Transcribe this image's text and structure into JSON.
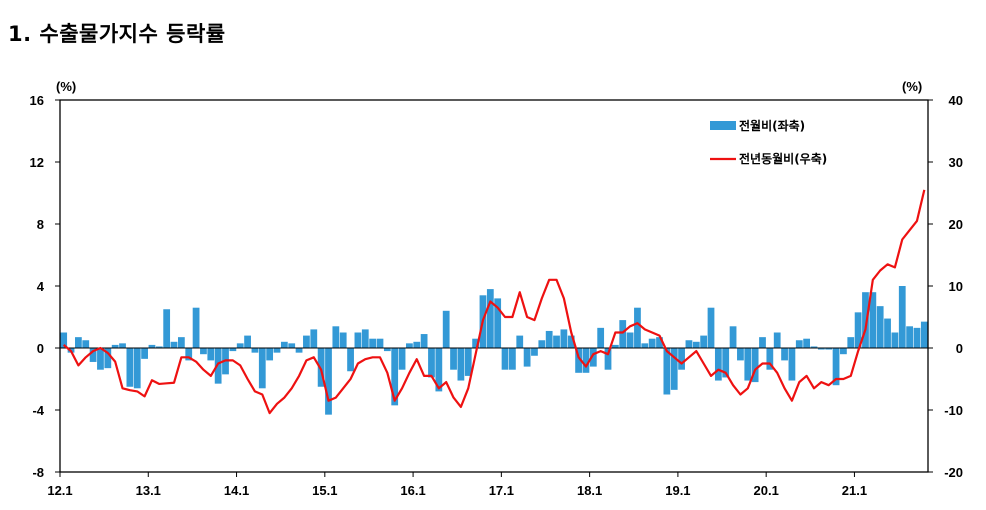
{
  "page": {
    "title": "1. 수출물가지수 등락률"
  },
  "chart_data": {
    "type": "bar+line",
    "title": "1. 수출물가지수 등락률",
    "left_axis": {
      "unit_label": "(%)",
      "ylim": [
        -8,
        16
      ],
      "ticks": [
        16,
        12,
        8,
        4,
        0,
        -4,
        -8
      ]
    },
    "right_axis": {
      "unit_label": "(%)",
      "ylim": [
        -20,
        40
      ],
      "ticks": [
        40,
        30,
        20,
        10,
        0,
        -10,
        -20
      ]
    },
    "x_tick_labels": [
      "12.1",
      "13.1",
      "14.1",
      "15.1",
      "16.1",
      "17.1",
      "18.1",
      "19.1",
      "20.1",
      "21.1"
    ],
    "x_tick_index": [
      0,
      12,
      24,
      36,
      48,
      60,
      72,
      84,
      96,
      108
    ],
    "grid": false,
    "legend_position": "top-right",
    "series": [
      {
        "name": "전월비(좌축)",
        "type": "bar",
        "axis": "left",
        "color": "#3399d6",
        "values": [
          1.0,
          -0.3,
          0.7,
          0.5,
          -0.9,
          -1.4,
          -1.3,
          0.2,
          0.3,
          -2.5,
          -2.6,
          -0.7,
          0.2,
          0.1,
          2.5,
          0.4,
          0.7,
          -0.8,
          2.6,
          -0.4,
          -0.8,
          -2.3,
          -1.7,
          -0.2,
          0.3,
          0.8,
          -0.3,
          -2.6,
          -0.8,
          -0.3,
          0.4,
          0.3,
          -0.3,
          0.8,
          1.2,
          -2.5,
          -4.3,
          1.4,
          1.0,
          -1.5,
          1.0,
          1.2,
          0.6,
          0.6,
          -0.2,
          -3.7,
          -1.4,
          0.3,
          0.4,
          0.9,
          -1.9,
          -2.8,
          2.4,
          -1.4,
          -2.1,
          -1.8,
          0.6,
          3.4,
          3.8,
          3.2,
          -1.4,
          -1.4,
          0.8,
          -1.2,
          -0.5,
          0.5,
          1.1,
          0.8,
          1.2,
          0.8,
          -1.6,
          -1.6,
          -1.2,
          1.3,
          -1.4,
          0.2,
          1.8,
          1.0,
          2.6,
          0.3,
          0.6,
          0.7,
          -3.0,
          -2.7,
          -1.4,
          0.5,
          0.4,
          0.8,
          2.6,
          -2.1,
          -1.9,
          1.4,
          -0.8,
          -2.1,
          -2.2,
          0.7,
          -1.4,
          1.0,
          -0.8,
          -2.1,
          0.5,
          0.6,
          0.1,
          -0.1,
          -0.1,
          -2.4,
          -0.4,
          0.7,
          2.3,
          3.6,
          3.6,
          2.7,
          1.9,
          1.0,
          4.0,
          1.4,
          1.3,
          1.7
        ]
      },
      {
        "name": "전년동월비(우축)",
        "type": "line",
        "axis": "right",
        "color": "#ee1111",
        "values": [
          0.5,
          -0.5,
          -2.8,
          -1.5,
          -0.5,
          0.0,
          -0.8,
          -2.2,
          -6.5,
          -6.8,
          -7.0,
          -7.8,
          -5.2,
          -5.8,
          -5.7,
          -5.6,
          -1.5,
          -1.5,
          -2.2,
          -3.5,
          -4.5,
          -2.5,
          -2.0,
          -2.0,
          -2.8,
          -5.0,
          -7.0,
          -7.5,
          -10.5,
          -9.0,
          -8.0,
          -6.5,
          -4.5,
          -2.0,
          -1.5,
          -3.5,
          -8.5,
          -8.0,
          -6.5,
          -5.0,
          -2.5,
          -1.8,
          -1.5,
          -1.5,
          -4.0,
          -8.5,
          -6.5,
          -4.0,
          -1.8,
          -4.5,
          -4.5,
          -6.5,
          -5.5,
          -8.0,
          -9.5,
          -6.5,
          -1.0,
          4.5,
          7.5,
          6.5,
          5.0,
          5.0,
          9.0,
          5.0,
          4.5,
          8.0,
          11.0,
          11.0,
          8.0,
          2.5,
          -1.5,
          -3.0,
          -1.0,
          -0.5,
          -1.0,
          2.5,
          2.5,
          3.5,
          4.0,
          3.0,
          2.5,
          2.0,
          -0.5,
          -1.5,
          -2.5,
          -1.5,
          -0.5,
          -2.5,
          -4.5,
          -3.5,
          -4.0,
          -6.0,
          -7.5,
          -6.5,
          -3.5,
          -2.5,
          -2.5,
          -4.0,
          -6.5,
          -8.5,
          -5.5,
          -4.5,
          -6.5,
          -5.5,
          -6.0,
          -5.0,
          -5.0,
          -4.5,
          -0.5,
          3.0,
          11.0,
          12.5,
          13.5,
          13.0,
          17.5,
          19.0,
          20.5,
          25.5
        ]
      }
    ]
  }
}
